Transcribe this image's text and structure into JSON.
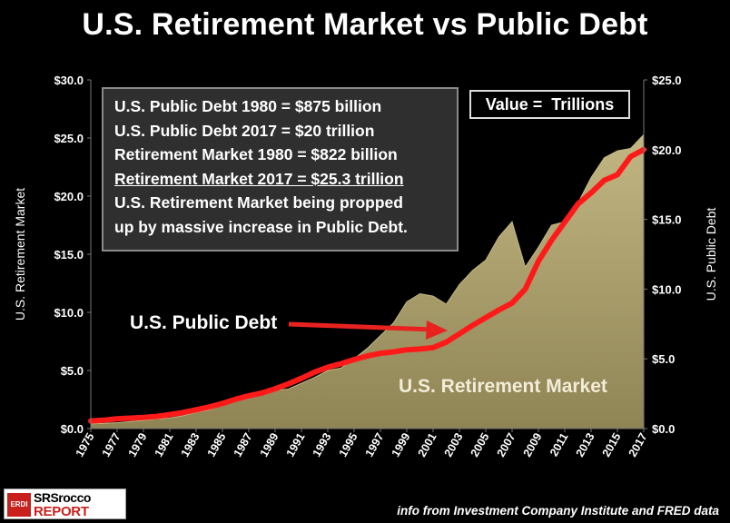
{
  "page": {
    "title": "U.S. Retirement Market vs Public Debt",
    "source": "info from Investment Company Institute and FRED data",
    "logo": {
      "badge": "ERDI",
      "line1": "SRSrocco",
      "line2": "REPORT"
    }
  },
  "info_box": {
    "lines": [
      "U.S. Public Debt 1980 = $875 billion",
      "U.S. Public Debt 2017 = $20 trillion",
      "Retirement Market 1980 = $822 billion",
      "Retirement Market 2017 = $25.3 trillion",
      "U.S. Retirement Market being propped",
      "up by massive increase in Public Debt."
    ]
  },
  "value_box": "Value =  Trillions",
  "annotations": {
    "debt_label": "U.S. Public Debt",
    "retirement_label": "U.S. Retirement Market"
  },
  "colors": {
    "area": "#a89c6a",
    "area_top": "#c2b683",
    "line": "#ff1a1a",
    "arrow": "#e8231f"
  },
  "chart_data": {
    "type": "area",
    "title": "U.S. Retirement Market vs Public Debt",
    "ylabel_left": "U.S. Retirement Market",
    "ylabel_right": "U.S. Public Debt",
    "x": [
      1975,
      1976,
      1977,
      1978,
      1979,
      1980,
      1981,
      1982,
      1983,
      1984,
      1985,
      1986,
      1987,
      1988,
      1989,
      1990,
      1991,
      1992,
      1993,
      1994,
      1995,
      1996,
      1997,
      1998,
      1999,
      2000,
      2001,
      2002,
      2003,
      2004,
      2005,
      2006,
      2007,
      2008,
      2009,
      2010,
      2011,
      2012,
      2013,
      2014,
      2015,
      2016,
      2017
    ],
    "x_tick_labels": [
      "1975",
      "1977",
      "1979",
      "1981",
      "1983",
      "1985",
      "1987",
      "1989",
      "1991",
      "1993",
      "1995",
      "1997",
      "1999",
      "2001",
      "2003",
      "2005",
      "2007",
      "2009",
      "2011",
      "2013",
      "2015",
      "2017"
    ],
    "left_axis": {
      "ylim": [
        0,
        30
      ],
      "tick_labels": [
        "$0.0",
        "$5.0",
        "$10.0",
        "$15.0",
        "$20.0",
        "$25.0",
        "$30.0"
      ]
    },
    "right_axis": {
      "ylim": [
        0,
        25
      ],
      "tick_labels": [
        "$0.0",
        "$5.0",
        "$10.0",
        "$15.0",
        "$20.0",
        "$25.0"
      ]
    },
    "series": [
      {
        "name": "U.S. Retirement Market",
        "type": "area",
        "axis": "left",
        "values": [
          0.4,
          0.45,
          0.5,
          0.6,
          0.7,
          0.82,
          0.9,
          1.1,
          1.4,
          1.6,
          2.0,
          2.4,
          2.6,
          3.0,
          3.3,
          3.4,
          3.9,
          4.4,
          5.0,
          5.2,
          6.0,
          6.9,
          8.0,
          9.1,
          10.9,
          11.6,
          11.4,
          10.7,
          12.4,
          13.6,
          14.5,
          16.5,
          17.8,
          13.9,
          15.6,
          17.5,
          17.8,
          19.4,
          21.6,
          23.3,
          23.9,
          24.1,
          25.3
        ]
      },
      {
        "name": "U.S. Public Debt",
        "type": "line",
        "axis": "right",
        "values": [
          0.55,
          0.6,
          0.7,
          0.75,
          0.8,
          0.875,
          1.0,
          1.15,
          1.35,
          1.55,
          1.8,
          2.1,
          2.35,
          2.55,
          2.85,
          3.2,
          3.6,
          4.05,
          4.4,
          4.65,
          4.95,
          5.2,
          5.4,
          5.5,
          5.65,
          5.7,
          5.8,
          6.2,
          6.8,
          7.4,
          7.95,
          8.5,
          9.0,
          10.0,
          12.0,
          13.5,
          14.8,
          16.1,
          16.9,
          17.8,
          18.2,
          19.5,
          20.0
        ]
      }
    ]
  }
}
